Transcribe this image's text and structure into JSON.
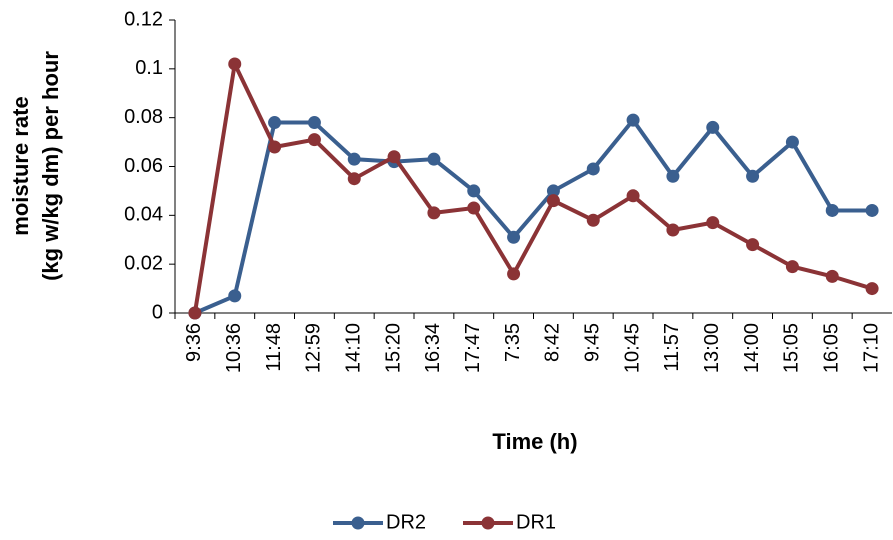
{
  "chart_data": {
    "type": "line",
    "ylabel": [
      "moisture rate",
      "(kg w/kg dm) per hour"
    ],
    "xlabel": "Time (h)",
    "categories": [
      "9:36",
      "10:36",
      "11:48",
      "12:59",
      "14:10",
      "15:20",
      "16:34",
      "17:47",
      "7:35",
      "8:42",
      "9:45",
      "10:45",
      "11:57",
      "13:00",
      "14:00",
      "15:05",
      "16:05",
      "17:10"
    ],
    "series": [
      {
        "name": "DR2",
        "color": "#3a5f8f",
        "values": [
          0,
          0.007,
          0.078,
          0.078,
          0.063,
          0.062,
          0.063,
          0.05,
          0.031,
          0.05,
          0.059,
          0.079,
          0.056,
          0.076,
          0.056,
          0.07,
          0.042,
          0.042
        ]
      },
      {
        "name": "DR1",
        "color": "#8b3336",
        "values": [
          0,
          0.102,
          0.068,
          0.071,
          0.055,
          0.064,
          0.041,
          0.043,
          0.016,
          0.046,
          0.038,
          0.048,
          0.034,
          0.037,
          0.028,
          0.019,
          0.015,
          0.01
        ]
      }
    ],
    "ylim": [
      0,
      0.12
    ],
    "yticks": [
      0,
      0.02,
      0.04,
      0.06,
      0.08,
      0.1,
      0.12
    ],
    "grid": false,
    "legend": "bottom"
  }
}
